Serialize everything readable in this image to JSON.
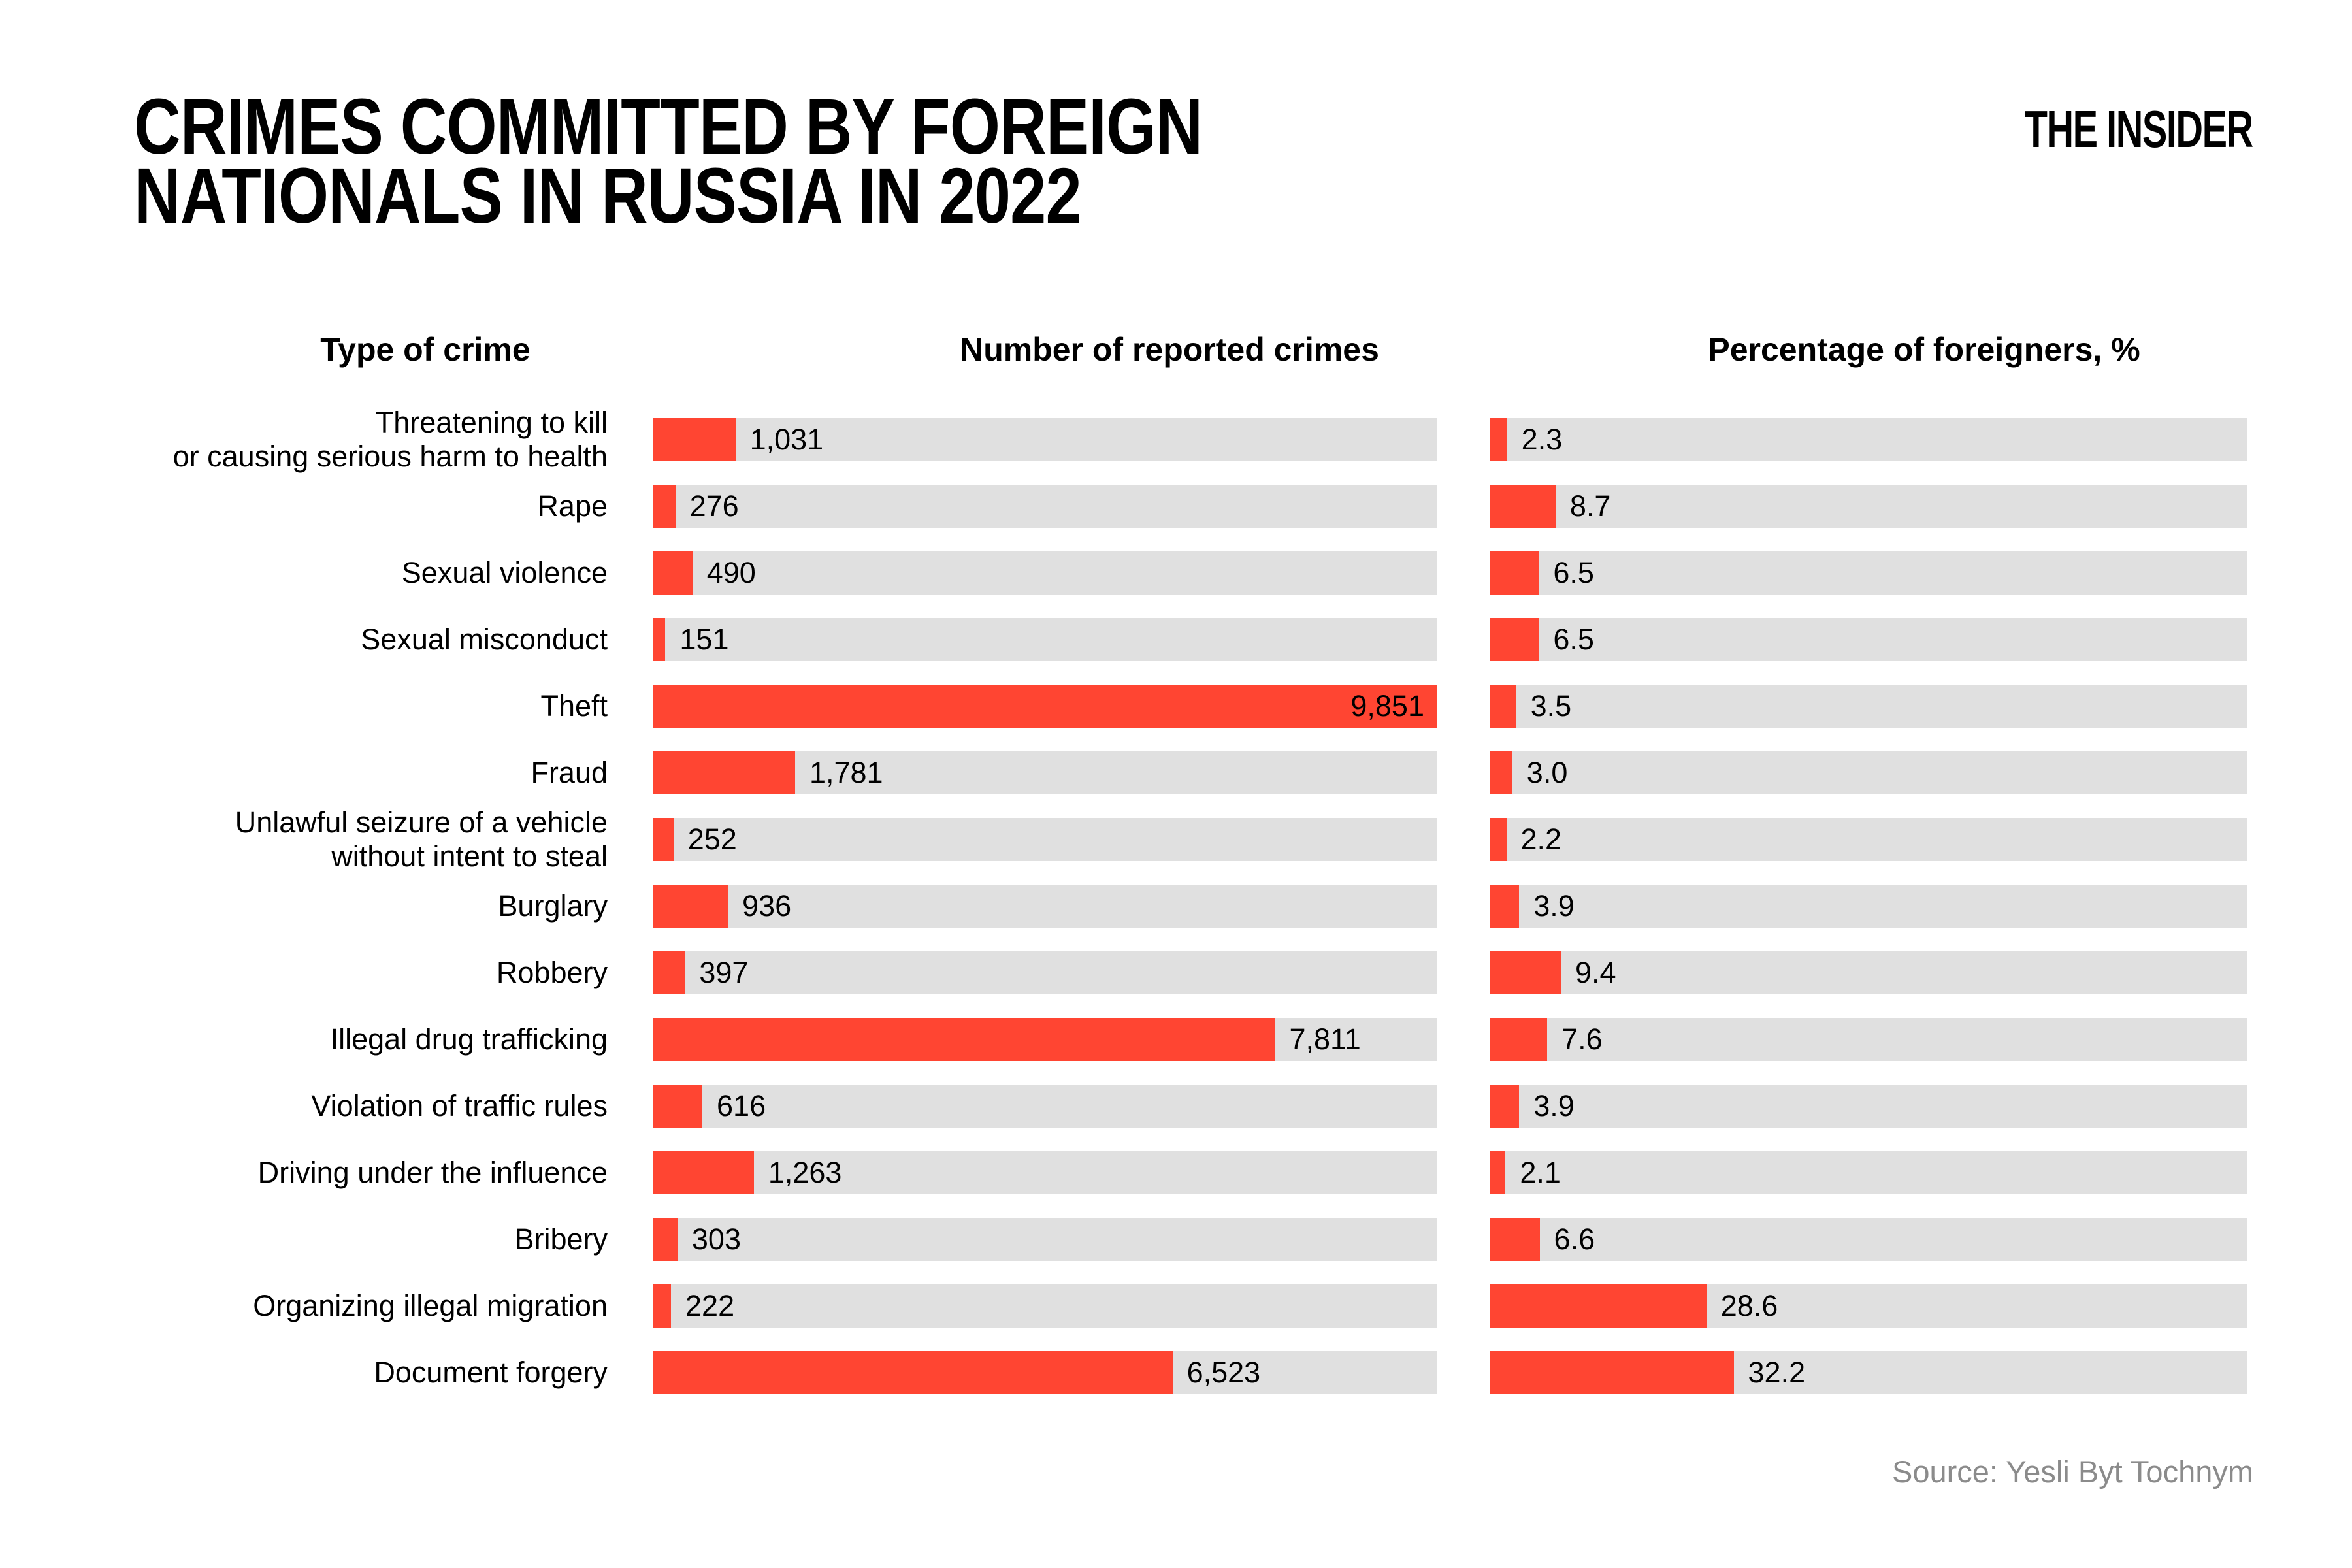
{
  "title": {
    "line1": "CRIMES COMMITTED BY FOREIGN",
    "line2": "NATIONALS IN RUSSIA IN 2022"
  },
  "logo": {
    "text": "THE INSIDER"
  },
  "headers": {
    "type": "Type of crime",
    "crimes": "Number of reported crimes",
    "pct": "Percentage of foreigners, %"
  },
  "source": "Source: Yesli Byt Tochnym",
  "colors": {
    "bar": "#FF4532",
    "track": "#E0E0E0",
    "text": "#000000",
    "muted": "#8B8B8B",
    "background": "#FFFFFF"
  },
  "chart_data": {
    "type": "bar",
    "orientation": "horizontal",
    "title": "Crimes committed by foreign nationals in Russia in 2022",
    "legend_position": "none",
    "grid": false,
    "categories": [
      "Threatening to kill or causing serious harm to health",
      "Rape",
      "Sexual violence",
      "Sexual misconduct",
      "Theft",
      "Fraud",
      "Unlawful seizure of a vehicle without intent to steal",
      "Burglary",
      "Robbery",
      "Illegal drug trafficking",
      "Violation of traffic rules",
      "Driving under the influence",
      "Bribery",
      "Organizing illegal migration",
      "Document forgery"
    ],
    "series": [
      {
        "name": "Number of reported crimes",
        "axis_max": 9851,
        "values": [
          1031,
          276,
          490,
          151,
          9851,
          1781,
          252,
          936,
          397,
          7811,
          616,
          1263,
          303,
          222,
          6523
        ]
      },
      {
        "name": "Percentage of foreigners, %",
        "axis_max": 100,
        "values": [
          2.3,
          8.7,
          6.5,
          6.5,
          3.5,
          3.0,
          2.2,
          3.9,
          9.4,
          7.6,
          3.9,
          2.1,
          6.6,
          28.6,
          32.2
        ]
      }
    ],
    "rows": [
      {
        "label_lines": [
          "Threatening to kill",
          "or causing serious harm to health"
        ],
        "crimes": 1031,
        "crimes_label": "1,031",
        "crimes_label_inside": false,
        "pct": 2.3,
        "pct_label": "2.3"
      },
      {
        "label_lines": [
          "Rape"
        ],
        "crimes": 276,
        "crimes_label": "276",
        "crimes_label_inside": false,
        "pct": 8.7,
        "pct_label": "8.7"
      },
      {
        "label_lines": [
          "Sexual violence"
        ],
        "crimes": 490,
        "crimes_label": "490",
        "crimes_label_inside": false,
        "pct": 6.5,
        "pct_label": "6.5"
      },
      {
        "label_lines": [
          "Sexual misconduct"
        ],
        "crimes": 151,
        "crimes_label": "151",
        "crimes_label_inside": false,
        "pct": 6.5,
        "pct_label": "6.5"
      },
      {
        "label_lines": [
          "Theft"
        ],
        "crimes": 9851,
        "crimes_label": "9,851",
        "crimes_label_inside": true,
        "pct": 3.5,
        "pct_label": "3.5"
      },
      {
        "label_lines": [
          "Fraud"
        ],
        "crimes": 1781,
        "crimes_label": "1,781",
        "crimes_label_inside": false,
        "pct": 3.0,
        "pct_label": "3.0"
      },
      {
        "label_lines": [
          "Unlawful seizure of a vehicle",
          "without intent to steal"
        ],
        "crimes": 252,
        "crimes_label": "252",
        "crimes_label_inside": false,
        "pct": 2.2,
        "pct_label": "2.2"
      },
      {
        "label_lines": [
          "Burglary"
        ],
        "crimes": 936,
        "crimes_label": "936",
        "crimes_label_inside": false,
        "pct": 3.9,
        "pct_label": "3.9"
      },
      {
        "label_lines": [
          "Robbery"
        ],
        "crimes": 397,
        "crimes_label": "397",
        "crimes_label_inside": false,
        "pct": 9.4,
        "pct_label": "9.4"
      },
      {
        "label_lines": [
          "Illegal drug trafficking"
        ],
        "crimes": 7811,
        "crimes_label": "7,811",
        "crimes_label_inside": false,
        "pct": 7.6,
        "pct_label": "7.6"
      },
      {
        "label_lines": [
          "Violation of traffic rules"
        ],
        "crimes": 616,
        "crimes_label": "616",
        "crimes_label_inside": false,
        "pct": 3.9,
        "pct_label": "3.9"
      },
      {
        "label_lines": [
          "Driving under the influence"
        ],
        "crimes": 1263,
        "crimes_label": "1,263",
        "crimes_label_inside": false,
        "pct": 2.1,
        "pct_label": "2.1"
      },
      {
        "label_lines": [
          "Bribery"
        ],
        "crimes": 303,
        "crimes_label": "303",
        "crimes_label_inside": false,
        "pct": 6.6,
        "pct_label": "6.6"
      },
      {
        "label_lines": [
          "Organizing illegal migration"
        ],
        "crimes": 222,
        "crimes_label": "222",
        "crimes_label_inside": false,
        "pct": 28.6,
        "pct_label": "28.6"
      },
      {
        "label_lines": [
          "Document forgery"
        ],
        "crimes": 6523,
        "crimes_label": "6,523",
        "crimes_label_inside": false,
        "pct": 32.2,
        "pct_label": "32.2"
      }
    ]
  }
}
